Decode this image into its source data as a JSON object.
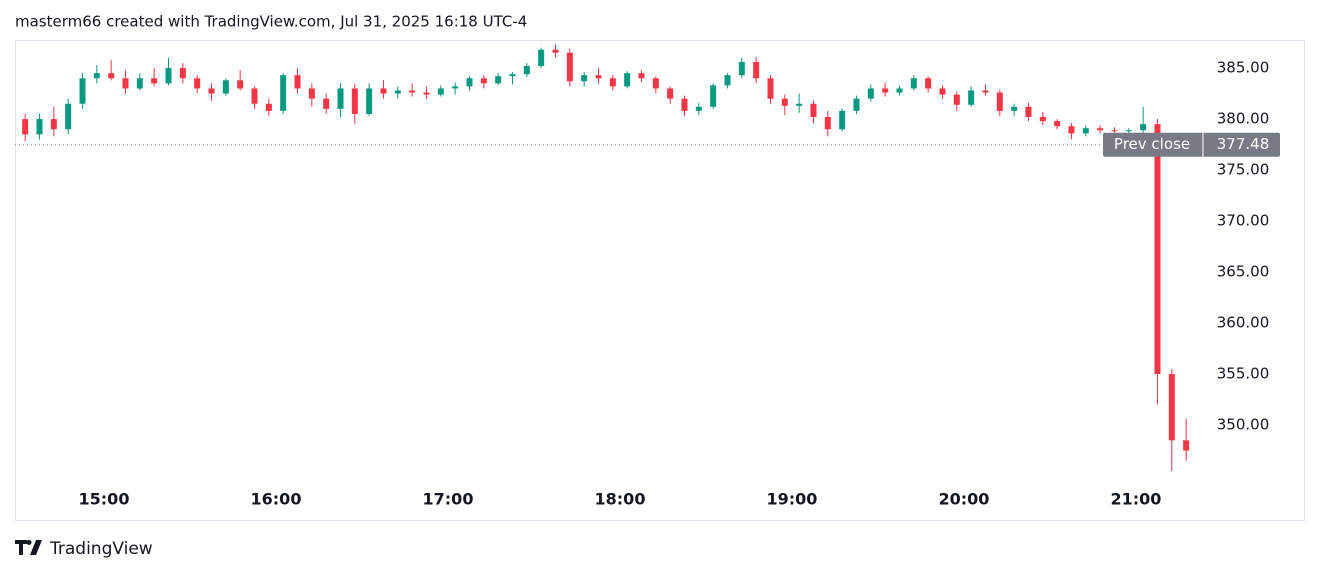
{
  "header": "masterm66 created with TradingView.com, Jul 31, 2025 16:18 UTC-4",
  "footer": "TradingView",
  "chart_data": {
    "type": "candlestick",
    "up_color": "#089981",
    "down_color": "#f23645",
    "categories": [
      "14:30",
      "14:35",
      "14:40",
      "14:45",
      "14:50",
      "14:55",
      "15:00",
      "15:05",
      "15:10",
      "15:15",
      "15:20",
      "15:25",
      "15:30",
      "15:35",
      "15:40",
      "15:45",
      "15:50",
      "15:55",
      "16:00",
      "16:05",
      "16:10",
      "16:15",
      "16:20",
      "16:25",
      "16:30",
      "16:35",
      "16:40",
      "16:45",
      "16:50",
      "16:55",
      "17:00",
      "17:05",
      "17:10",
      "17:15",
      "17:20",
      "17:25",
      "17:30",
      "17:35",
      "17:40",
      "17:45",
      "17:50",
      "17:55",
      "18:00",
      "18:05",
      "18:10",
      "18:15",
      "18:20",
      "18:25",
      "18:30",
      "18:35",
      "18:40",
      "18:45",
      "18:50",
      "18:55",
      "19:00",
      "19:05",
      "19:10",
      "19:15",
      "19:20",
      "19:25",
      "19:30",
      "19:35",
      "19:40",
      "19:45",
      "19:50",
      "19:55",
      "20:00",
      "20:05",
      "20:10",
      "20:15",
      "20:20",
      "20:25",
      "20:30",
      "20:35",
      "20:40",
      "20:45",
      "20:50",
      "20:55",
      "21:00",
      "21:05",
      "21:10",
      "21:15"
    ],
    "open": [
      380,
      378.5,
      380,
      379,
      381.5,
      384,
      384.5,
      384,
      383,
      384,
      383.5,
      385,
      384,
      383,
      382.5,
      383.8,
      383,
      381.5,
      380.8,
      384.3,
      383,
      382,
      381,
      383,
      380.5,
      383,
      382.5,
      382.8,
      382.6,
      382.4,
      383,
      383.2,
      384,
      383.5,
      384.2,
      384.4,
      385.2,
      386.8,
      386.5,
      383.7,
      384.3,
      384,
      383.2,
      384.5,
      384,
      383,
      382,
      380.8,
      381.2,
      383.3,
      384.3,
      385.6,
      384,
      382,
      381.3,
      381.5,
      380.2,
      379,
      380.8,
      382,
      383,
      382.6,
      383,
      384,
      383,
      382.4,
      381.4,
      382.8,
      382.6,
      380.8,
      381.2,
      380.2,
      379.8,
      379.3,
      378.6,
      379.1,
      378.9,
      378.8,
      378.9,
      379.5,
      355,
      348.5
    ],
    "high": [
      380.5,
      380.5,
      381.2,
      382,
      384.5,
      385.3,
      385.8,
      384.8,
      384.5,
      385,
      386,
      385.5,
      384.3,
      383.5,
      384,
      384.8,
      383.2,
      382,
      384.5,
      385,
      383.5,
      382.5,
      383.5,
      383.5,
      383.5,
      383.8,
      383.2,
      383.5,
      383.2,
      383.3,
      383.6,
      384.2,
      384.3,
      384.5,
      384.6,
      385.5,
      387,
      387.3,
      386.9,
      384.6,
      385,
      384.3,
      384.7,
      384.8,
      384.2,
      383.2,
      382.3,
      381.6,
      383.5,
      384.5,
      386,
      386.1,
      384.3,
      382.4,
      382.5,
      381.8,
      380.8,
      381,
      382.3,
      383.4,
      383.6,
      383.3,
      384.3,
      384.2,
      383.3,
      382.7,
      383.2,
      383.4,
      382.9,
      381.5,
      381.6,
      380.7,
      380,
      379.6,
      379.4,
      379.4,
      379.2,
      379.1,
      381.2,
      380,
      355.5,
      350.6
    ],
    "low": [
      377.8,
      378,
      378.3,
      378.5,
      381,
      383.5,
      383.8,
      382.5,
      382.8,
      383.2,
      383.3,
      383.5,
      382.5,
      381.8,
      382.3,
      382.8,
      381,
      380.3,
      380.5,
      382.5,
      381.2,
      380.5,
      380.2,
      379.5,
      380.3,
      382,
      382,
      382.2,
      382,
      382.2,
      382.4,
      382.8,
      383,
      383.3,
      383.4,
      384.1,
      385,
      386,
      383.2,
      383.2,
      383.5,
      382.8,
      383,
      383.6,
      382.5,
      381.5,
      380.3,
      380.4,
      381,
      383,
      384,
      383.5,
      381.5,
      380.4,
      380.6,
      379.6,
      378.3,
      378.8,
      380.5,
      381.7,
      382.2,
      382.3,
      382.8,
      382.6,
      382,
      380.8,
      381.2,
      382.3,
      380.3,
      380.3,
      379.8,
      379.4,
      379,
      378,
      378.3,
      378.6,
      378.5,
      378.4,
      378.5,
      352,
      345.5,
      346.5
    ],
    "close": [
      378.5,
      380,
      379,
      381.5,
      384,
      384.5,
      384,
      383,
      384,
      383.5,
      385,
      384,
      383,
      382.5,
      383.8,
      383,
      381.5,
      380.8,
      384.3,
      383,
      382,
      381,
      383,
      380.5,
      383,
      382.5,
      382.8,
      382.6,
      382.4,
      383,
      383.2,
      384,
      383.5,
      384.2,
      384.4,
      385.2,
      386.8,
      386.5,
      383.7,
      384.3,
      384,
      383.2,
      384.5,
      384,
      383,
      382,
      380.8,
      381.2,
      383.3,
      384.3,
      385.6,
      384,
      382,
      381.3,
      381.5,
      380.2,
      379,
      380.8,
      382,
      383,
      382.6,
      383,
      384,
      383,
      382.4,
      381.4,
      382.8,
      382.6,
      380.8,
      381.2,
      380.2,
      379.8,
      379.3,
      378.6,
      379.1,
      378.9,
      378.8,
      378.9,
      379.5,
      355,
      348.5,
      347.5
    ],
    "ylim": [
      344.12,
      387.75
    ],
    "yticks": [
      {
        "value": 350,
        "label": "350.00"
      },
      {
        "value": 355,
        "label": "355.00"
      },
      {
        "value": 360,
        "label": "360.00"
      },
      {
        "value": 365,
        "label": "365.00"
      },
      {
        "value": 370,
        "label": "370.00"
      },
      {
        "value": 375,
        "label": "375.00"
      },
      {
        "value": 380,
        "label": "380.00"
      },
      {
        "value": 385,
        "label": "385.00"
      }
    ],
    "xticks": [
      "15:00",
      "16:00",
      "17:00",
      "18:00",
      "19:00",
      "20:00",
      "21:00"
    ],
    "prev_close": {
      "label": "Prev close",
      "value": 377.48,
      "value_label": "377.48"
    }
  }
}
